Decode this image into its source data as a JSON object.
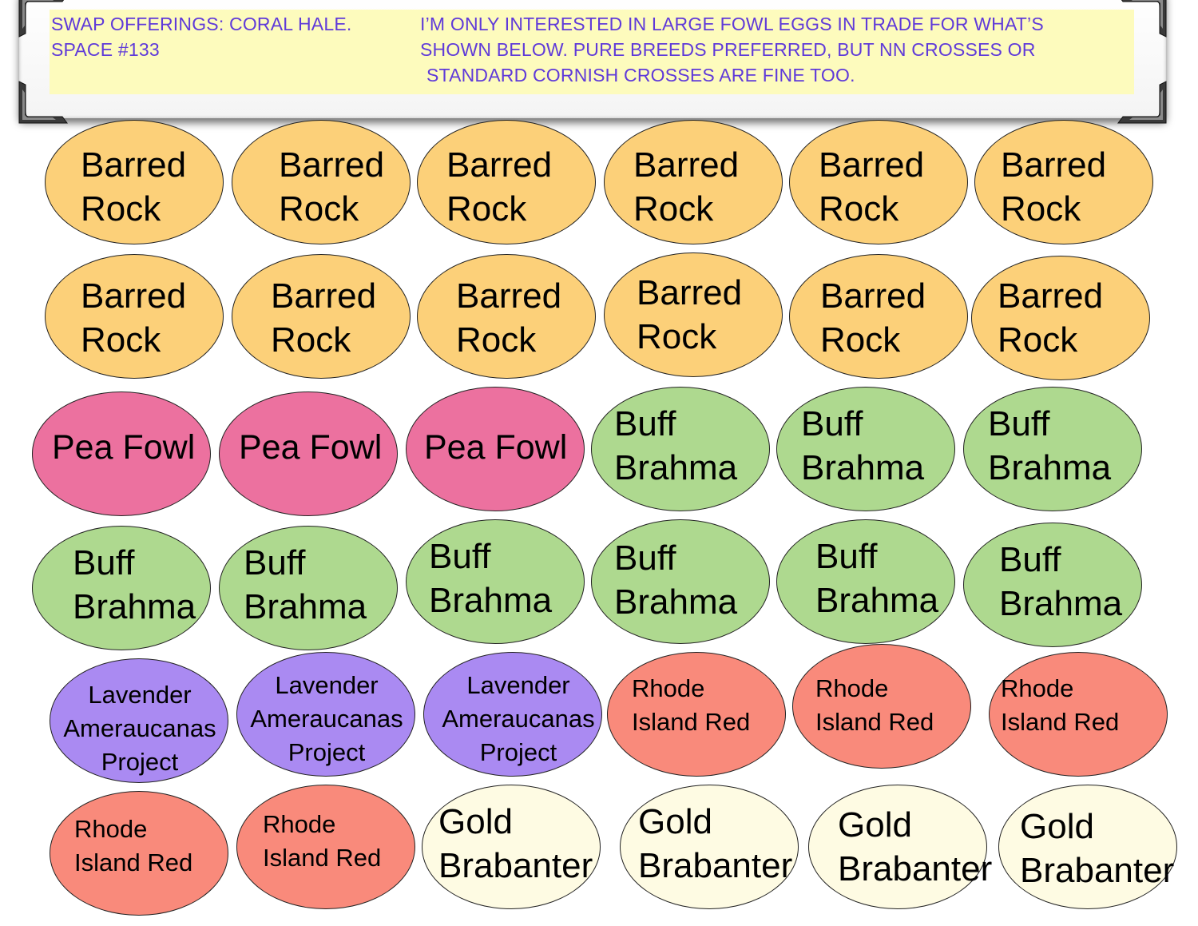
{
  "header": {
    "left_lines": [
      "SWAP OFFERINGS: CORAL HALE.",
      "SPACE #133"
    ],
    "right_lines": [
      "I’M ONLY INTERESTED IN LARGE FOWL EGGS IN TRADE FOR WHAT’S",
      "SHOWN BELOW.  PURE BREEDS PREFERRED, BUT NN CROSSES OR",
      "STANDARD CORNISH CROSSES ARE FINE TOO."
    ]
  },
  "colors": {
    "note_background": "#fdfbbd",
    "note_text": "#5f3ad9",
    "barred_rock": "#fcd079",
    "pea_fowl": "#ec719f",
    "buff_brahma": "#aed98f",
    "lavender_ameraucanas": "#aa8af2",
    "rhode_island_red": "#f98a7b",
    "gold_brabanter": "#fefbe3"
  },
  "eggs": [
    {
      "label": [
        "Barred",
        "Rock"
      ]
    },
    {
      "label": [
        "Barred",
        "Rock"
      ]
    },
    {
      "label": [
        "Barred",
        "Rock"
      ]
    },
    {
      "label": [
        "Barred",
        "Rock"
      ]
    },
    {
      "label": [
        "Barred",
        "Rock"
      ]
    },
    {
      "label": [
        "Barred",
        "Rock"
      ]
    },
    {
      "label": [
        "Barred",
        "Rock"
      ]
    },
    {
      "label": [
        "Barred",
        "Rock"
      ]
    },
    {
      "label": [
        "Barred",
        "Rock"
      ]
    },
    {
      "label": [
        "Barred",
        "Rock"
      ]
    },
    {
      "label": [
        "Barred",
        "Rock"
      ]
    },
    {
      "label": [
        "Barred",
        "Rock"
      ]
    },
    {
      "label": [
        "Pea Fowl"
      ]
    },
    {
      "label": [
        "Pea Fowl"
      ]
    },
    {
      "label": [
        "Pea Fowl"
      ]
    },
    {
      "label": [
        "Buff",
        "Brahma"
      ]
    },
    {
      "label": [
        "Buff",
        "Brahma"
      ]
    },
    {
      "label": [
        "Buff",
        "Brahma"
      ]
    },
    {
      "label": [
        "Buff",
        "Brahma"
      ]
    },
    {
      "label": [
        "Buff",
        "Brahma"
      ]
    },
    {
      "label": [
        "Buff",
        "Brahma"
      ]
    },
    {
      "label": [
        "Buff",
        "Brahma"
      ]
    },
    {
      "label": [
        "Buff",
        "Brahma"
      ]
    },
    {
      "label": [
        "Buff",
        "Brahma"
      ]
    },
    {
      "label": [
        "Lavender",
        "Ameraucanas",
        "Project"
      ]
    },
    {
      "label": [
        "Lavender",
        "Ameraucanas",
        "Project"
      ]
    },
    {
      "label": [
        "Lavender",
        "Ameraucanas",
        "Project"
      ]
    },
    {
      "label": [
        "Rhode",
        "Island Red"
      ]
    },
    {
      "label": [
        "Rhode",
        "Island Red"
      ]
    },
    {
      "label": [
        "Rhode",
        "Island Red"
      ]
    },
    {
      "label": [
        "Rhode",
        "Island Red"
      ]
    },
    {
      "label": [
        "Rhode",
        "Island Red"
      ]
    },
    {
      "label": [
        "Gold",
        "Brabanter"
      ]
    },
    {
      "label": [
        "Gold",
        "Brabanter"
      ]
    },
    {
      "label": [
        "Gold",
        "Brabanter"
      ]
    },
    {
      "label": [
        "Gold",
        "Brabanter"
      ]
    }
  ]
}
